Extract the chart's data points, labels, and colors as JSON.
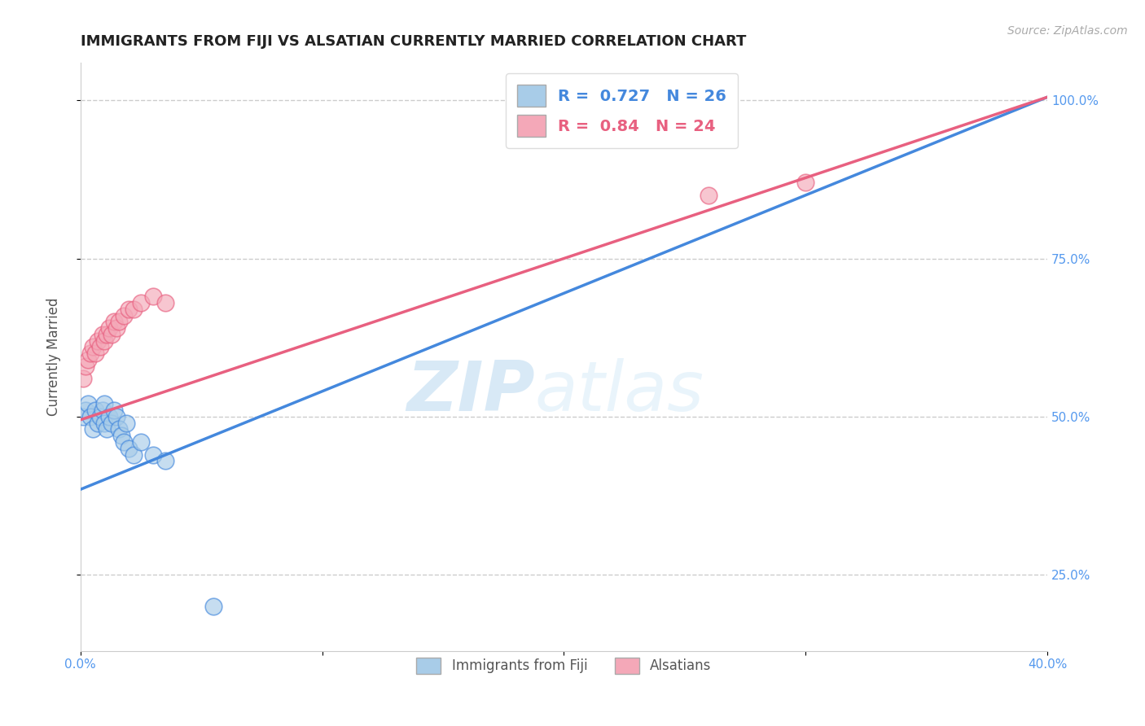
{
  "title": "IMMIGRANTS FROM FIJI VS ALSATIAN CURRENTLY MARRIED CORRELATION CHART",
  "source": "Source: ZipAtlas.com",
  "ylabel": "Currently Married",
  "xlim": [
    0.0,
    0.4
  ],
  "ylim": [
    0.13,
    1.06
  ],
  "xticks": [
    0.0,
    0.1,
    0.2,
    0.3,
    0.4
  ],
  "xtick_labels": [
    "0.0%",
    "",
    "",
    "",
    "40.0%"
  ],
  "yticks": [
    0.25,
    0.5,
    0.75,
    1.0
  ],
  "ytick_labels": [
    "25.0%",
    "50.0%",
    "75.0%",
    "100.0%"
  ],
  "legend_labels": [
    "Immigrants from Fiji",
    "Alsatians"
  ],
  "fiji_R": 0.727,
  "fiji_N": 26,
  "alsatian_R": 0.84,
  "alsatian_N": 24,
  "fiji_color": "#a8cce8",
  "alsatian_color": "#f4a8b8",
  "fiji_line_color": "#4488dd",
  "alsatian_line_color": "#e86080",
  "fiji_scatter_x": [
    0.001,
    0.002,
    0.003,
    0.004,
    0.005,
    0.006,
    0.007,
    0.008,
    0.009,
    0.01,
    0.01,
    0.011,
    0.012,
    0.013,
    0.014,
    0.015,
    0.016,
    0.017,
    0.018,
    0.019,
    0.02,
    0.022,
    0.025,
    0.03,
    0.035,
    0.055
  ],
  "fiji_scatter_y": [
    0.5,
    0.51,
    0.52,
    0.5,
    0.48,
    0.51,
    0.49,
    0.5,
    0.51,
    0.52,
    0.49,
    0.48,
    0.5,
    0.49,
    0.51,
    0.5,
    0.48,
    0.47,
    0.46,
    0.49,
    0.45,
    0.44,
    0.46,
    0.44,
    0.43,
    0.2
  ],
  "alsatian_scatter_x": [
    0.001,
    0.002,
    0.003,
    0.004,
    0.005,
    0.006,
    0.007,
    0.008,
    0.009,
    0.01,
    0.011,
    0.012,
    0.013,
    0.014,
    0.015,
    0.016,
    0.018,
    0.02,
    0.022,
    0.025,
    0.03,
    0.035,
    0.26,
    0.3
  ],
  "alsatian_scatter_y": [
    0.56,
    0.58,
    0.59,
    0.6,
    0.61,
    0.6,
    0.62,
    0.61,
    0.63,
    0.62,
    0.63,
    0.64,
    0.63,
    0.65,
    0.64,
    0.65,
    0.66,
    0.67,
    0.67,
    0.68,
    0.69,
    0.68,
    0.85,
    0.87
  ],
  "fiji_line_x0": 0.0,
  "fiji_line_y0": 0.385,
  "fiji_line_x1": 0.4,
  "fiji_line_y1": 1.005,
  "alsatian_line_x0": 0.0,
  "alsatian_line_y0": 0.495,
  "alsatian_line_x1": 0.4,
  "alsatian_line_y1": 1.005,
  "watermark_zip": "ZIP",
  "watermark_atlas": "atlas",
  "background_color": "#ffffff",
  "grid_color": "#cccccc",
  "title_fontsize": 13,
  "axis_label_fontsize": 12,
  "tick_label_color": "#5599ee",
  "tick_label_fontsize": 11
}
